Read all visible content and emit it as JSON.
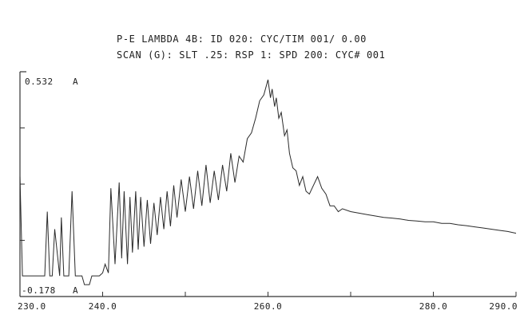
{
  "header": {
    "line1": "P-E LAMBDA 4B: ID 020: CYC/TIM 001/ 0.00",
    "line2": "SCAN (G): SLT .25: RSP 1: SPD 200: CYC# 001"
  },
  "chart_data": {
    "type": "line",
    "title": "",
    "xlabel": "",
    "ylabel": "",
    "xlim": [
      230,
      290
    ],
    "ylim": [
      -0.178,
      0.532
    ],
    "y_max_label": "0.532",
    "y_min_label": "-0.178",
    "y_unit": "A",
    "x_tick_labels": [
      {
        "value": 230,
        "label": "230.0"
      },
      {
        "value": 240,
        "label": "240.0"
      },
      {
        "value": 260,
        "label": "260.0"
      },
      {
        "value": 280,
        "label": "280.0"
      },
      {
        "value": 290,
        "label": "290.0"
      }
    ],
    "grid": false,
    "series": [
      {
        "x": [
          230.0,
          230.3,
          230.6,
          231.0,
          232.0,
          233.0,
          233.3,
          233.6,
          233.9,
          234.2,
          234.8,
          235.0,
          235.3,
          235.6,
          235.9,
          236.3,
          236.7,
          237.3,
          237.5,
          237.8,
          238.4,
          238.7,
          239.0,
          239.6,
          240.0,
          240.3,
          240.7,
          241.0,
          241.5,
          242.0,
          242.3,
          242.6,
          243.0,
          243.3,
          243.6,
          244.0,
          244.3,
          244.6,
          245.0,
          245.4,
          245.8,
          246.2,
          246.6,
          247.0,
          247.4,
          247.8,
          248.2,
          248.6,
          249.0,
          249.5,
          250.0,
          250.5,
          251.0,
          251.5,
          252.0,
          252.5,
          253.0,
          253.5,
          254.0,
          254.5,
          255.0,
          255.5,
          256.0,
          256.5,
          257.0,
          257.5,
          258.0,
          258.5,
          259.0,
          259.5,
          260.0,
          260.3,
          260.5,
          260.8,
          261.0,
          261.3,
          261.6,
          262.0,
          262.3,
          262.6,
          263.0,
          263.4,
          263.8,
          264.2,
          264.6,
          265.0,
          265.5,
          266.0,
          266.5,
          267.0,
          267.5,
          268.0,
          268.5,
          269.0,
          270.0,
          271.0,
          272.0,
          273.0,
          274.0,
          275.0,
          276.0,
          277.0,
          278.0,
          279.0,
          280.0,
          281.0,
          282.0,
          283.0,
          284.0,
          285.0,
          286.0,
          287.0,
          288.0,
          289.0,
          290.0
        ],
        "values": [
          0.2,
          -0.14,
          -0.14,
          -0.14,
          -0.14,
          -0.14,
          0.08,
          -0.14,
          -0.14,
          0.02,
          -0.14,
          0.06,
          -0.14,
          -0.14,
          -0.14,
          0.15,
          -0.14,
          -0.14,
          -0.14,
          -0.17,
          -0.17,
          -0.14,
          -0.14,
          -0.14,
          -0.13,
          -0.1,
          -0.13,
          0.16,
          -0.1,
          0.18,
          -0.08,
          0.15,
          -0.1,
          0.13,
          -0.06,
          0.15,
          -0.05,
          0.13,
          -0.04,
          0.12,
          -0.03,
          0.11,
          0.0,
          0.13,
          0.02,
          0.15,
          0.03,
          0.17,
          0.06,
          0.19,
          0.08,
          0.2,
          0.09,
          0.22,
          0.1,
          0.24,
          0.11,
          0.22,
          0.12,
          0.24,
          0.15,
          0.28,
          0.18,
          0.27,
          0.25,
          0.33,
          0.35,
          0.4,
          0.46,
          0.48,
          0.532,
          0.47,
          0.5,
          0.44,
          0.47,
          0.4,
          0.42,
          0.34,
          0.36,
          0.28,
          0.23,
          0.22,
          0.17,
          0.2,
          0.15,
          0.14,
          0.17,
          0.2,
          0.16,
          0.14,
          0.1,
          0.1,
          0.08,
          0.09,
          0.08,
          0.075,
          0.07,
          0.065,
          0.06,
          0.058,
          0.055,
          0.05,
          0.048,
          0.045,
          0.045,
          0.04,
          0.04,
          0.035,
          0.032,
          0.028,
          0.024,
          0.02,
          0.016,
          0.012,
          0.006
        ]
      }
    ]
  }
}
